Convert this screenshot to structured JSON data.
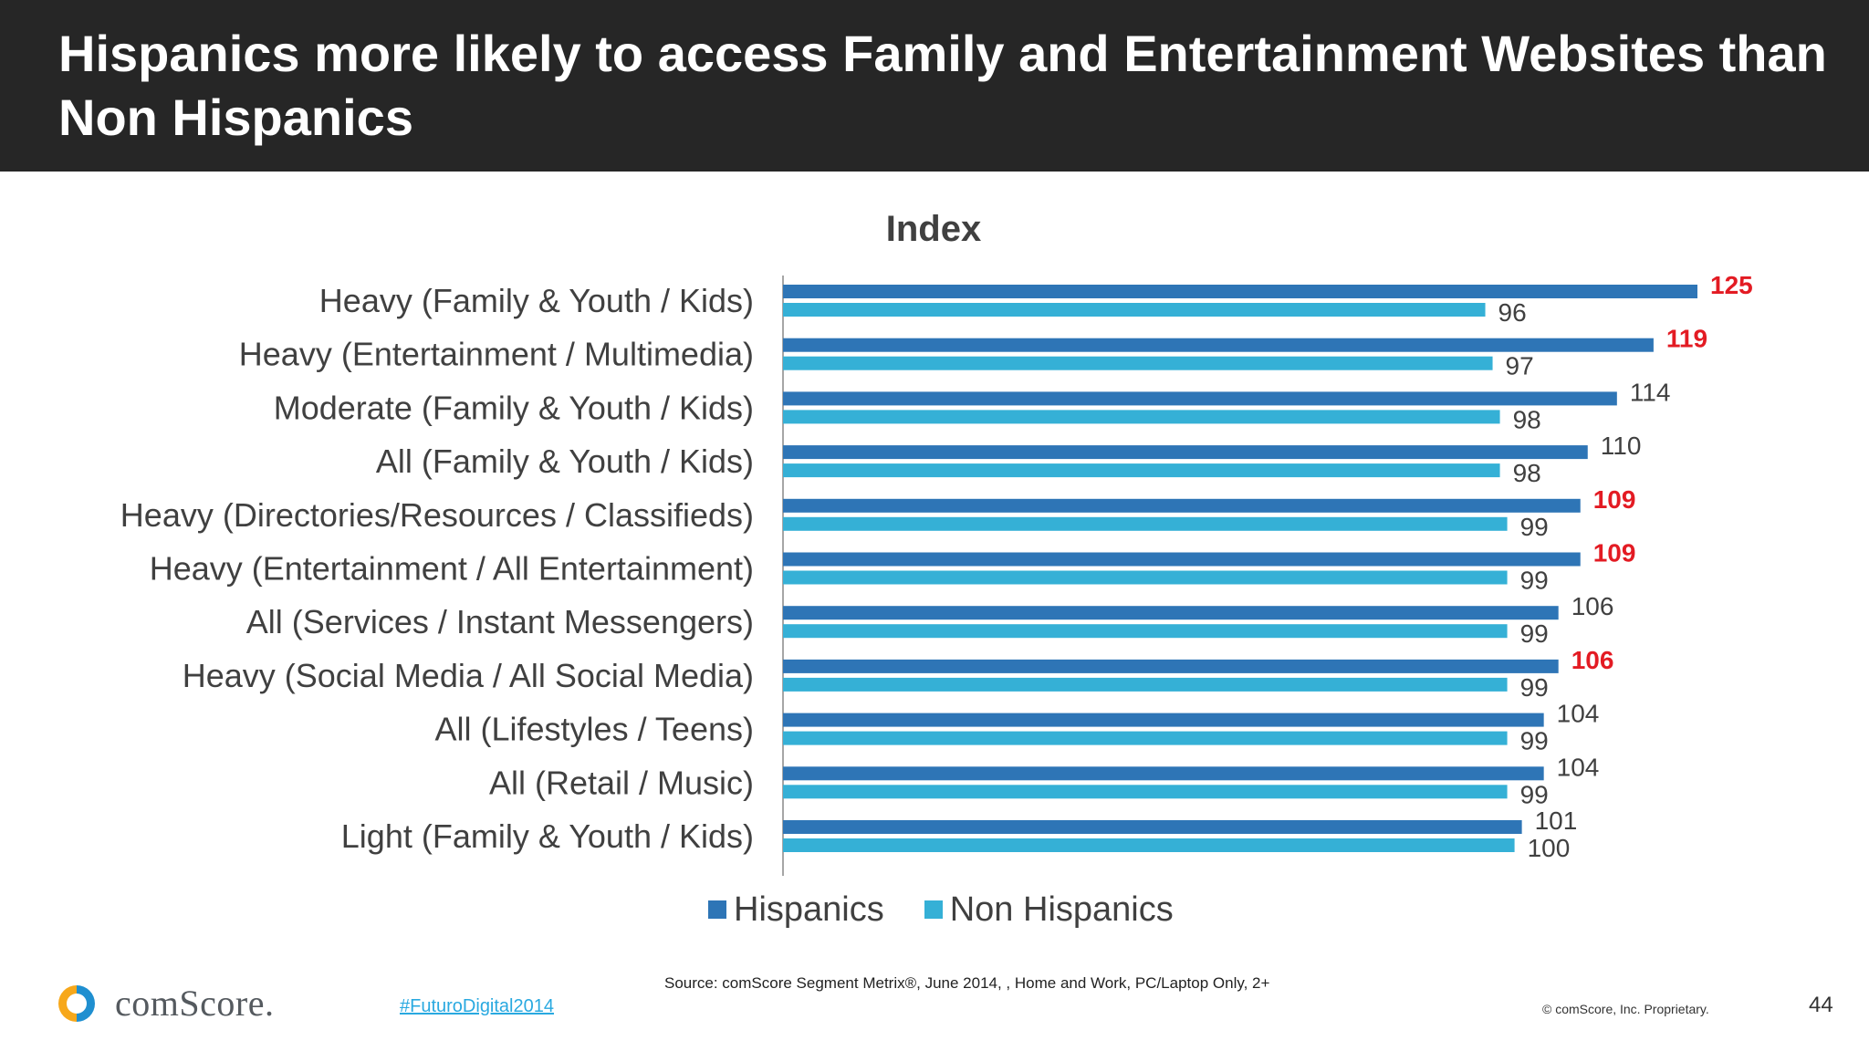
{
  "header": {
    "title": "Hispanics more likely to access Family and Entertainment Websites than Non Hispanics"
  },
  "chart_data": {
    "type": "bar",
    "orientation": "horizontal",
    "title": "Index",
    "categories": [
      "Heavy (Family & Youth / Kids)",
      "Heavy (Entertainment / Multimedia)",
      "Moderate (Family & Youth / Kids)",
      "All (Family & Youth / Kids)",
      "Heavy (Directories/Resources / Classifieds)",
      "Heavy (Entertainment / All Entertainment)",
      "All (Services / Instant Messengers)",
      "Heavy (Social Media / All Social Media)",
      "All (Lifestyles / Teens)",
      "All (Retail / Music)",
      "Light (Family & Youth / Kids)"
    ],
    "series": [
      {
        "name": "Hispanics",
        "color": "#2e75b6",
        "values": [
          125,
          119,
          114,
          110,
          109,
          109,
          106,
          106,
          104,
          104,
          101
        ],
        "highlighted": [
          true,
          true,
          false,
          false,
          true,
          true,
          false,
          true,
          false,
          false,
          false
        ]
      },
      {
        "name": "Non Hispanics",
        "color": "#35b0d6",
        "values": [
          96,
          97,
          98,
          98,
          99,
          99,
          99,
          99,
          99,
          99,
          100
        ]
      }
    ],
    "highlight_color": "#e31b23",
    "xlim": [
      0,
      125
    ],
    "grid": false,
    "legend_position": "bottom"
  },
  "footer": {
    "source": "Source: comScore Segment Metrix®, June 2014, , Home and Work, PC/Laptop Only, 2+",
    "logo_text": "comScore.",
    "hashtag": "#FuturoDigital2014",
    "copyright": "© comScore, Inc. Proprietary.",
    "page_number": "44"
  }
}
